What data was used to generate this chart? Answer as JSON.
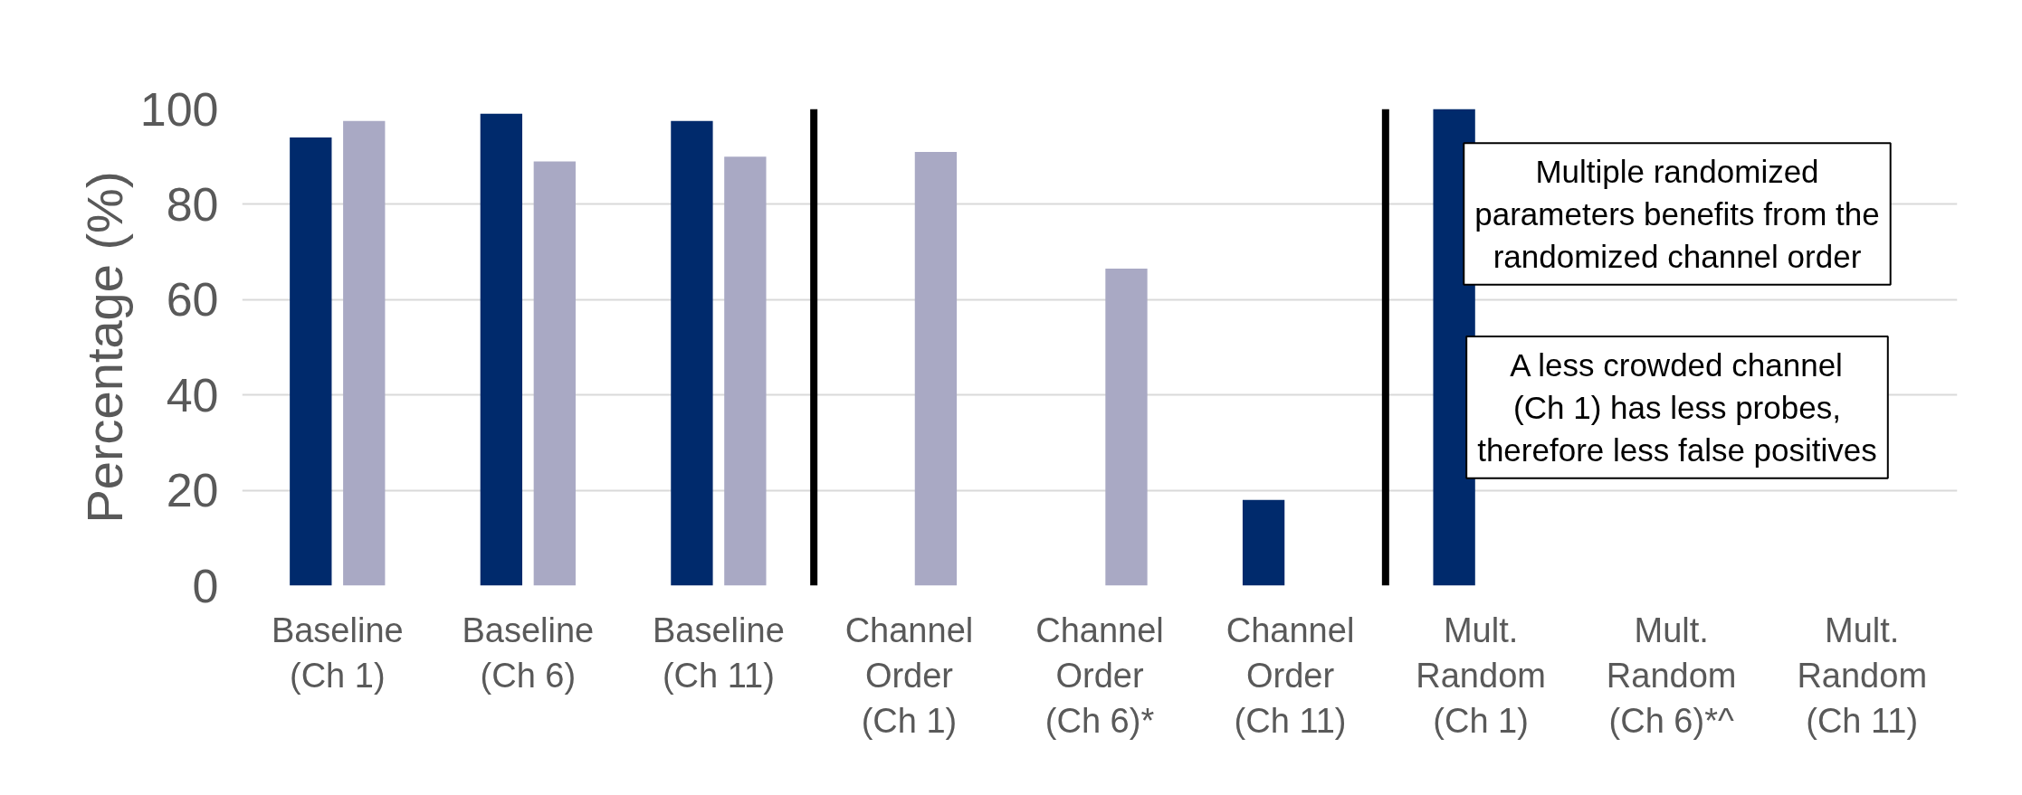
{
  "chart_data": {
    "type": "bar",
    "ylabel": "Percentage (%)",
    "categories": [
      "Baseline\n(Ch 1)",
      "Baseline\n(Ch 6)",
      "Baseline\n(Ch 11)",
      "Channel\nOrder\n(Ch 1)",
      "Channel\nOrder\n(Ch 6)*",
      "Channel\nOrder\n(Ch 11)",
      "Mult.\nRandom\n(Ch 1)",
      "Mult.\nRandom\n(Ch 6)*^",
      "Mult.\nRandom\n(Ch 11)"
    ],
    "series": [
      {
        "color": "#002a6c",
        "values": [
          94,
          99,
          97.5,
          0,
          0,
          18,
          100,
          null,
          null
        ]
      },
      {
        "color": "#a9a9c4",
        "values": [
          97.5,
          89,
          90,
          91,
          66.5,
          0,
          null,
          0,
          null
        ]
      }
    ],
    "ylim": [
      0,
      100
    ],
    "yticks": [
      0,
      20,
      40,
      60,
      80,
      100
    ],
    "grid": "y",
    "annotations": [
      "Multiple randomized\nparameters benefits from the\nrandomized channel order",
      "A less crowded channel\n(Ch 1) has less probes,\ntherefore less false positives"
    ]
  }
}
